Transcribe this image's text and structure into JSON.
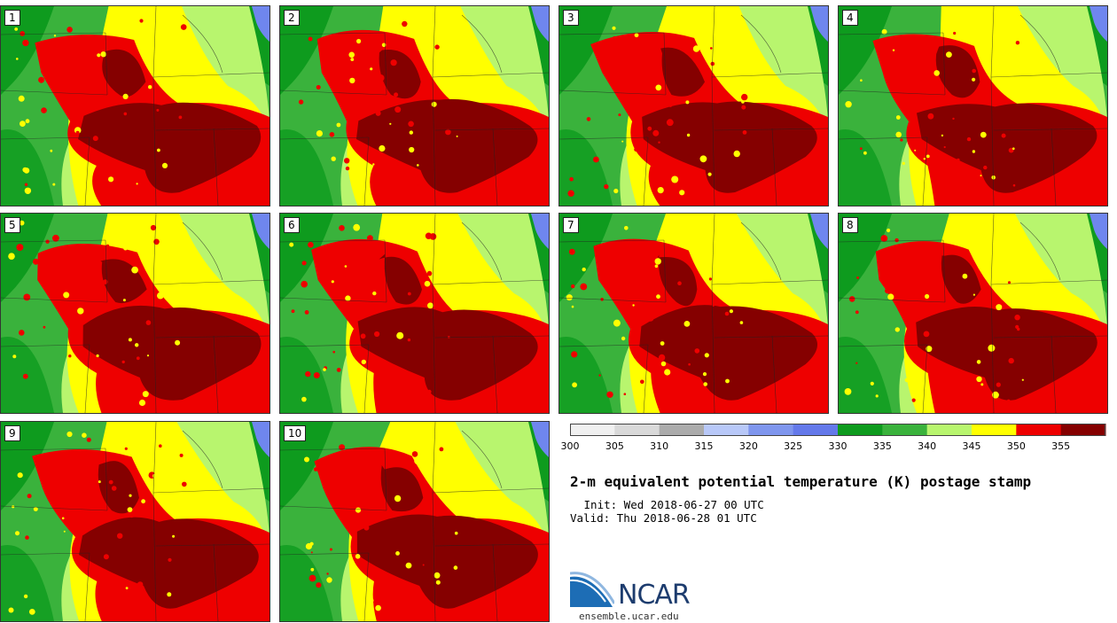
{
  "panels": [
    {
      "label": "1"
    },
    {
      "label": "2"
    },
    {
      "label": "3"
    },
    {
      "label": "4"
    },
    {
      "label": "5"
    },
    {
      "label": "6"
    },
    {
      "label": "7"
    },
    {
      "label": "8"
    },
    {
      "label": "9"
    },
    {
      "label": "10"
    }
  ],
  "colorbar": {
    "ticks": [
      "300",
      "305",
      "310",
      "315",
      "320",
      "325",
      "330",
      "335",
      "340",
      "345",
      "350",
      "355"
    ],
    "colors": [
      "#f0f0f0",
      "#d9d9d9",
      "#ababab",
      "#b8c8f8",
      "#7f96ee",
      "#6479ea",
      "#0e9b1e",
      "#3ab23c",
      "#b8f56e",
      "#ffff00",
      "#ee0000",
      "#850000"
    ]
  },
  "title": "2-m equivalent potential temperature (K) postage stamp",
  "init": " Init: Wed 2018-06-27 00 UTC",
  "valid": "Valid: Thu 2018-06-28 01 UTC",
  "logo": {
    "text": "NCAR",
    "site": "ensemble.ucar.edu"
  },
  "map_colors": {
    "green_dark": "#0e9b1e",
    "green": "#3ab23c",
    "green_light": "#b8f56e",
    "yellow": "#ffff00",
    "red": "#ee0000",
    "dark_red": "#850000",
    "lake": "#6f86ee"
  }
}
